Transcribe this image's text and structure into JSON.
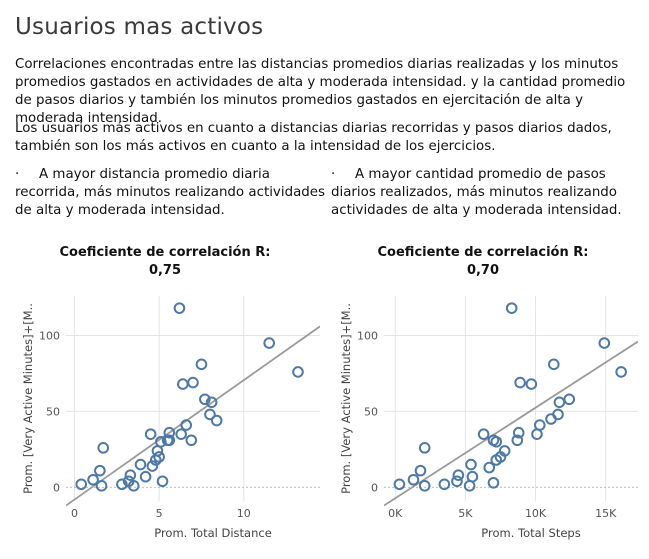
{
  "title": "Usuarios mas activos",
  "paragraph1": "Correlaciones encontradas entre las distancias promedios diarias realizadas y los minutos promedios gastados en actividades de alta y moderada intensidad. y la cantidad promedio de pasos diarios y también los minutos promedios gastados en ejercitación de alta y moderada intensidad.",
  "paragraph2": "Los usuarios más activos en cuanto a distancias diarias recorridas y pasos diarios dados, también son los más activos en cuanto a la intensidad de los ejercicios.",
  "bullets": [
    {
      "symbol": "·",
      "text": "A mayor distancia promedio diaria recorrida, más minutos realizando actividades de alta y moderada intensidad."
    },
    {
      "symbol": "·",
      "text": "A mayor cantidad promedio de pasos diarios realizados, más minutos realizando actividades de alta y moderada intensidad."
    }
  ],
  "colors": {
    "marker": "#4e79a7",
    "trend": "#9a9a9a",
    "grid": "#e4e4e4",
    "axis_text": "#555555"
  },
  "chart_data": [
    {
      "type": "scatter",
      "title_line1": "Coeficiente de correlación R:",
      "title_line2": "0,75",
      "xlabel": "Prom. Total Distance",
      "ylabel": "Prom. [Very Active Minutes]+[M..",
      "xlim": [
        -0.5,
        14.5
      ],
      "ylim": [
        -9,
        126
      ],
      "xticks": [
        0,
        5,
        10
      ],
      "xtick_labels": [
        "0",
        "5",
        "10"
      ],
      "yticks": [
        0,
        50,
        100
      ],
      "ytick_labels": [
        "0",
        "50",
        "100"
      ],
      "grid": true,
      "trendline": {
        "x": [
          -0.5,
          14.5
        ],
        "y": [
          -12,
          106
        ]
      },
      "points": [
        [
          0.4,
          2
        ],
        [
          1.1,
          5
        ],
        [
          1.5,
          11
        ],
        [
          1.6,
          1
        ],
        [
          1.7,
          26
        ],
        [
          2.8,
          2
        ],
        [
          3.2,
          4
        ],
        [
          3.3,
          8
        ],
        [
          3.5,
          1
        ],
        [
          3.9,
          15
        ],
        [
          4.2,
          7
        ],
        [
          4.5,
          35
        ],
        [
          4.6,
          14
        ],
        [
          4.8,
          18
        ],
        [
          4.9,
          24
        ],
        [
          5.0,
          20
        ],
        [
          5.1,
          30
        ],
        [
          5.2,
          4
        ],
        [
          5.5,
          31
        ],
        [
          5.6,
          36
        ],
        [
          5.6,
          31
        ],
        [
          6.2,
          118
        ],
        [
          6.3,
          35
        ],
        [
          6.4,
          68
        ],
        [
          6.6,
          41
        ],
        [
          6.9,
          31
        ],
        [
          7.0,
          69
        ],
        [
          7.5,
          81
        ],
        [
          7.7,
          58
        ],
        [
          8.0,
          48
        ],
        [
          8.1,
          56
        ],
        [
          8.4,
          44
        ],
        [
          11.5,
          95
        ],
        [
          13.2,
          76
        ]
      ]
    },
    {
      "type": "scatter",
      "title_line1": "Coeficiente de correlación R:",
      "title_line2": "0,70",
      "xlabel": "Prom. Total Steps",
      "ylabel": "Prom. [Very Active Minutes]+[M..",
      "xlim": [
        -800,
        17300
      ],
      "ylim": [
        -9,
        126
      ],
      "xticks": [
        0,
        5000,
        10000,
        15000
      ],
      "xtick_labels": [
        "0K",
        "5K",
        "10K",
        "15K"
      ],
      "yticks": [
        0,
        50,
        100
      ],
      "ytick_labels": [
        "0",
        "50",
        "100"
      ],
      "grid": true,
      "trendline": {
        "x": [
          -800,
          17300
        ],
        "y": [
          -12,
          96
        ]
      },
      "points": [
        [
          300,
          2
        ],
        [
          1300,
          5
        ],
        [
          1800,
          11
        ],
        [
          2100,
          1
        ],
        [
          2100,
          26
        ],
        [
          3500,
          2
        ],
        [
          4400,
          4
        ],
        [
          4500,
          8
        ],
        [
          5300,
          1
        ],
        [
          5400,
          15
        ],
        [
          5500,
          7
        ],
        [
          6300,
          35
        ],
        [
          6700,
          13
        ],
        [
          7000,
          3
        ],
        [
          7000,
          31
        ],
        [
          7200,
          30
        ],
        [
          7200,
          18
        ],
        [
          7500,
          20
        ],
        [
          7800,
          24
        ],
        [
          8300,
          118
        ],
        [
          8700,
          31
        ],
        [
          8800,
          36
        ],
        [
          8900,
          69
        ],
        [
          9700,
          68
        ],
        [
          10100,
          35
        ],
        [
          10300,
          41
        ],
        [
          11100,
          45
        ],
        [
          11300,
          81
        ],
        [
          11600,
          48
        ],
        [
          11700,
          56
        ],
        [
          12400,
          58
        ],
        [
          14900,
          95
        ],
        [
          16100,
          76
        ]
      ]
    }
  ]
}
